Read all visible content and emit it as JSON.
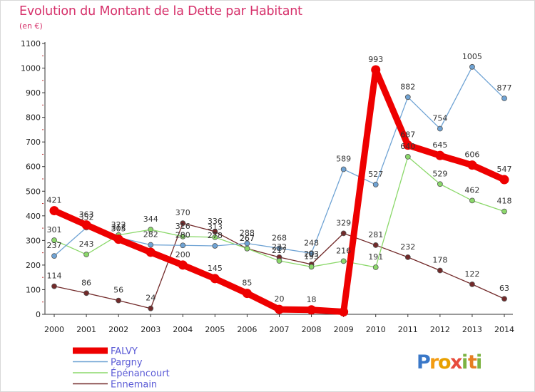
{
  "header": {
    "title": "Evolution du Montant de la Dette par Habitant",
    "subtitle": "(en €)"
  },
  "logo": {
    "letters": [
      "P",
      "r",
      "o",
      "x",
      "i",
      "t",
      "i"
    ],
    "colors": [
      "#3a78c8",
      "#f39c12",
      "#e8a000",
      "#e74c3c",
      "#7cb342",
      "#e67e22",
      "#7cb342"
    ]
  },
  "chart_data": {
    "type": "line",
    "title": "Evolution du Montant de la Dette par Habitant",
    "subtitle": "(en €)",
    "xlabel": "",
    "ylabel": "",
    "x": [
      "2000",
      "2001",
      "2002",
      "2003",
      "2004",
      "2005",
      "2006",
      "2007",
      "2008",
      "2009",
      "2010",
      "2011",
      "2012",
      "2013",
      "2014"
    ],
    "ylim": [
      0,
      1100
    ],
    "yticks": [
      0,
      100,
      200,
      300,
      400,
      500,
      600,
      700,
      800,
      900,
      1000,
      1100
    ],
    "grid": false,
    "legend_position": "bottom-left",
    "series": [
      {
        "name": "Ennemain",
        "color": "#722a2a",
        "values": [
          114,
          86,
          56,
          24,
          370,
          336,
          267,
          232,
          203,
          329,
          281,
          232,
          178,
          122,
          63
        ],
        "labels": [
          "114",
          "86",
          "56",
          "24",
          "370",
          "336",
          "267",
          "232",
          "203",
          "329",
          "281",
          "232",
          "178",
          "122",
          "63"
        ]
      },
      {
        "name": "Épénancourt",
        "color": "#8bd86a",
        "values": [
          301,
          243,
          322,
          344,
          316,
          313,
          267,
          217,
          193,
          216,
          191,
          640,
          529,
          462,
          418
        ],
        "labels": [
          "301",
          "243",
          "322",
          "344",
          "316",
          "313",
          "267",
          "217",
          "193",
          "216",
          "191",
          "640",
          "529",
          "462",
          "418"
        ]
      },
      {
        "name": "Pargny",
        "color": "#6fa3d4",
        "values": [
          237,
          352,
          312,
          282,
          280,
          278,
          288,
          268,
          248,
          589,
          527,
          882,
          754,
          1005,
          877
        ],
        "labels": [
          "237",
          "352",
          "312",
          "282",
          "280",
          "278",
          "288",
          "268",
          "248",
          "589",
          "527",
          "882",
          "754",
          "1005",
          "877"
        ]
      },
      {
        "name": "FALVY",
        "color": "#ee0000",
        "values": [
          421,
          363,
          305,
          252,
          200,
          145,
          85,
          20,
          18,
          10,
          993,
          687,
          645,
          606,
          547
        ],
        "labels": [
          "421",
          "363",
          "305",
          "",
          "200",
          "145",
          "85",
          "20",
          "18",
          "",
          "993",
          "687",
          "645",
          "606",
          "547"
        ]
      }
    ]
  }
}
